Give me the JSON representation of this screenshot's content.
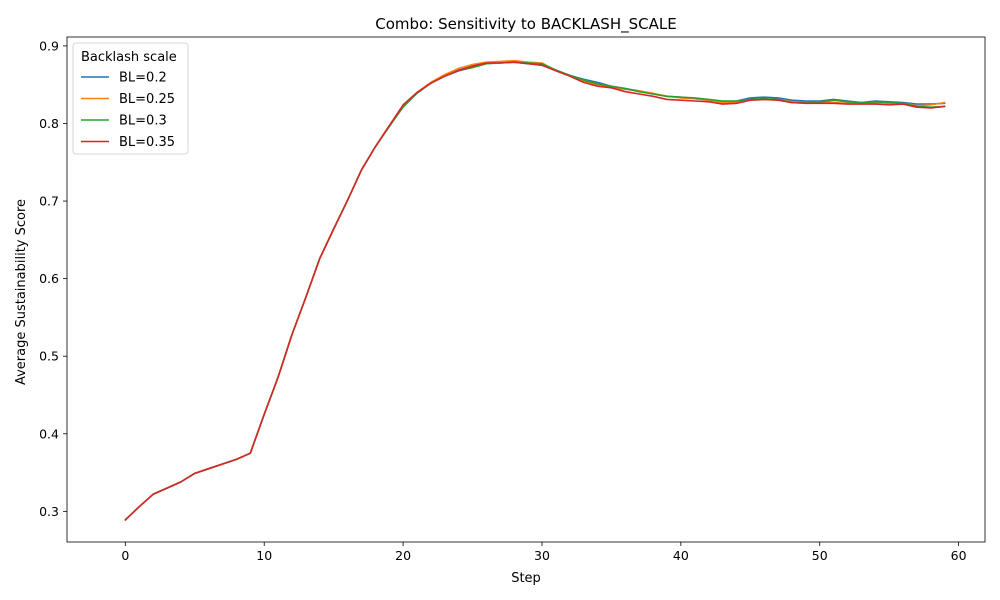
{
  "chart_data": {
    "type": "line",
    "title": "Combo: Sensitivity to BACKLASH_SCALE",
    "xlabel": "Step",
    "ylabel": "Average Sustainability Score",
    "xlim": [
      -4.2,
      61.9
    ],
    "ylim": [
      0.2605,
      0.9115
    ],
    "xticks": [
      0,
      10,
      20,
      30,
      40,
      50,
      60
    ],
    "yticks": [
      0.3,
      0.4,
      0.5,
      0.6,
      0.7,
      0.8,
      0.9
    ],
    "grid": false,
    "legend": {
      "title": "Backlash scale",
      "position": "top-left"
    },
    "x": [
      0,
      1,
      2,
      3,
      4,
      5,
      6,
      7,
      8,
      9,
      10,
      11,
      12,
      13,
      14,
      15,
      16,
      17,
      18,
      19,
      20,
      21,
      22,
      23,
      24,
      25,
      26,
      27,
      28,
      29,
      30,
      31,
      32,
      33,
      34,
      35,
      36,
      37,
      38,
      39,
      40,
      41,
      42,
      43,
      44,
      45,
      46,
      47,
      48,
      49,
      50,
      51,
      52,
      53,
      54,
      55,
      56,
      57,
      58,
      59
    ],
    "series": [
      {
        "name": "BL=0.2",
        "color": "#1f77b4",
        "values": [
          0.289,
          0.306,
          0.322,
          0.33,
          0.338,
          0.349,
          0.355,
          0.361,
          0.367,
          0.375,
          0.425,
          0.473,
          0.528,
          0.576,
          0.626,
          0.664,
          0.701,
          0.74,
          0.77,
          0.796,
          0.822,
          0.839,
          0.852,
          0.862,
          0.869,
          0.874,
          0.878,
          0.879,
          0.879,
          0.877,
          0.876,
          0.868,
          0.862,
          0.857,
          0.853,
          0.848,
          0.845,
          0.842,
          0.838,
          0.835,
          0.834,
          0.832,
          0.83,
          0.828,
          0.829,
          0.833,
          0.834,
          0.833,
          0.83,
          0.829,
          0.829,
          0.831,
          0.829,
          0.827,
          0.829,
          0.828,
          0.827,
          0.825,
          0.825,
          0.826
        ]
      },
      {
        "name": "BL=0.25",
        "color": "#ff7f0e",
        "values": [
          0.289,
          0.306,
          0.322,
          0.33,
          0.338,
          0.349,
          0.355,
          0.361,
          0.367,
          0.375,
          0.425,
          0.473,
          0.528,
          0.576,
          0.626,
          0.664,
          0.701,
          0.74,
          0.77,
          0.797,
          0.822,
          0.84,
          0.853,
          0.863,
          0.871,
          0.876,
          0.879,
          0.88,
          0.881,
          0.879,
          0.878,
          0.868,
          0.862,
          0.855,
          0.85,
          0.847,
          0.844,
          0.842,
          0.839,
          0.835,
          0.833,
          0.832,
          0.83,
          0.827,
          0.827,
          0.831,
          0.831,
          0.831,
          0.828,
          0.827,
          0.828,
          0.827,
          0.826,
          0.826,
          0.827,
          0.826,
          0.826,
          0.823,
          0.824,
          0.827
        ]
      },
      {
        "name": "BL=0.3",
        "color": "#2ca02c",
        "values": [
          0.289,
          0.306,
          0.322,
          0.33,
          0.338,
          0.349,
          0.355,
          0.361,
          0.367,
          0.375,
          0.425,
          0.473,
          0.528,
          0.576,
          0.626,
          0.664,
          0.701,
          0.74,
          0.77,
          0.796,
          0.821,
          0.839,
          0.852,
          0.861,
          0.868,
          0.872,
          0.877,
          0.878,
          0.879,
          0.878,
          0.877,
          0.869,
          0.862,
          0.856,
          0.851,
          0.848,
          0.845,
          0.841,
          0.838,
          0.835,
          0.834,
          0.833,
          0.831,
          0.829,
          0.829,
          0.831,
          0.832,
          0.831,
          0.827,
          0.827,
          0.828,
          0.83,
          0.828,
          0.827,
          0.828,
          0.827,
          0.826,
          0.822,
          0.821,
          0.822
        ]
      },
      {
        "name": "BL=0.35",
        "color": "#d62728",
        "values": [
          0.289,
          0.306,
          0.322,
          0.33,
          0.338,
          0.349,
          0.355,
          0.361,
          0.367,
          0.375,
          0.425,
          0.473,
          0.528,
          0.576,
          0.626,
          0.664,
          0.701,
          0.74,
          0.77,
          0.797,
          0.824,
          0.84,
          0.852,
          0.861,
          0.868,
          0.874,
          0.878,
          0.878,
          0.879,
          0.877,
          0.875,
          0.868,
          0.861,
          0.853,
          0.848,
          0.846,
          0.841,
          0.838,
          0.835,
          0.831,
          0.83,
          0.829,
          0.828,
          0.825,
          0.826,
          0.83,
          0.831,
          0.83,
          0.827,
          0.826,
          0.826,
          0.826,
          0.825,
          0.825,
          0.825,
          0.824,
          0.825,
          0.821,
          0.82,
          0.822
        ]
      }
    ]
  }
}
